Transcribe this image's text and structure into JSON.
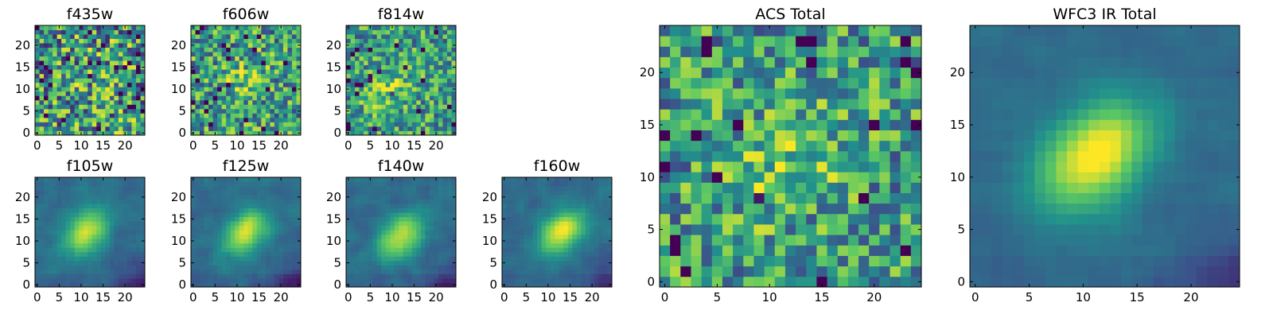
{
  "figure": {
    "colormap": "viridis",
    "colormap_stops": [
      "#440154",
      "#3b528b",
      "#21918c",
      "#5ec962",
      "#fde725"
    ],
    "frame_color": "#000000"
  },
  "chart_data": [
    {
      "type": "heatmap",
      "title": "f435w",
      "grid_size": 25,
      "xlim": [
        0,
        24
      ],
      "ylim": [
        0,
        24
      ],
      "xticks": [
        "0",
        "5",
        "10",
        "15",
        "20"
      ],
      "yticks": [
        "0",
        "5",
        "10",
        "15",
        "20"
      ],
      "source": "noise",
      "center": [
        12,
        12
      ],
      "signal_amplitude": 0.05,
      "noise_level": 0.95
    },
    {
      "type": "heatmap",
      "title": "f606w",
      "grid_size": 25,
      "xlim": [
        0,
        24
      ],
      "ylim": [
        0,
        24
      ],
      "xticks": [
        "0",
        "5",
        "10",
        "15",
        "20"
      ],
      "yticks": [
        "0",
        "5",
        "10",
        "15",
        "20"
      ],
      "source": "faint",
      "center": [
        12,
        12
      ],
      "signal_amplitude": 0.18,
      "noise_level": 0.8
    },
    {
      "type": "heatmap",
      "title": "f814w",
      "grid_size": 25,
      "xlim": [
        0,
        24
      ],
      "ylim": [
        0,
        24
      ],
      "xticks": [
        "0",
        "5",
        "10",
        "15",
        "20"
      ],
      "yticks": [
        "0",
        "5",
        "10",
        "15",
        "20"
      ],
      "source": "faint",
      "center": [
        9,
        10
      ],
      "signal_amplitude": 0.25,
      "noise_level": 0.7
    },
    {
      "type": "heatmap",
      "title": "f105w",
      "grid_size": 25,
      "xlim": [
        0,
        24
      ],
      "ylim": [
        0,
        24
      ],
      "xticks": [
        "0",
        "5",
        "10",
        "15",
        "20"
      ],
      "yticks": [
        "0",
        "5",
        "10",
        "15",
        "20"
      ],
      "source": "compact",
      "center": [
        11,
        12
      ],
      "signal_amplitude": 0.6,
      "noise_level": 0.3
    },
    {
      "type": "heatmap",
      "title": "f125w",
      "grid_size": 25,
      "xlim": [
        0,
        24
      ],
      "ylim": [
        0,
        24
      ],
      "xticks": [
        "0",
        "5",
        "10",
        "15",
        "20"
      ],
      "yticks": [
        "0",
        "5",
        "10",
        "15",
        "20"
      ],
      "source": "compact",
      "center": [
        12,
        12
      ],
      "signal_amplitude": 0.6,
      "noise_level": 0.3
    },
    {
      "type": "heatmap",
      "title": "f140w",
      "grid_size": 25,
      "xlim": [
        0,
        24
      ],
      "ylim": [
        0,
        24
      ],
      "xticks": [
        "0",
        "5",
        "10",
        "15",
        "20"
      ],
      "yticks": [
        "0",
        "5",
        "10",
        "15",
        "20"
      ],
      "source": "compact",
      "center": [
        12,
        11
      ],
      "signal_amplitude": 0.6,
      "noise_level": 0.3
    },
    {
      "type": "heatmap",
      "title": "f160w",
      "grid_size": 25,
      "xlim": [
        0,
        24
      ],
      "ylim": [
        0,
        24
      ],
      "xticks": [
        "0",
        "5",
        "10",
        "15",
        "20"
      ],
      "yticks": [
        "0",
        "5",
        "10",
        "15",
        "20"
      ],
      "source": "compact",
      "center": [
        13,
        12
      ],
      "signal_amplitude": 0.65,
      "noise_level": 0.25
    },
    {
      "type": "heatmap",
      "title": "ACS Total",
      "grid_size": 25,
      "xlim": [
        0,
        24
      ],
      "ylim": [
        0,
        24
      ],
      "xticks": [
        "0",
        "5",
        "10",
        "15",
        "20"
      ],
      "yticks": [
        "0",
        "5",
        "10",
        "15",
        "20"
      ],
      "source": "faint",
      "center": [
        12,
        11
      ],
      "signal_amplitude": 0.22,
      "noise_level": 0.75
    },
    {
      "type": "heatmap",
      "title": "WFC3 IR Total",
      "grid_size": 25,
      "xlim": [
        0,
        24
      ],
      "ylim": [
        0,
        24
      ],
      "xticks": [
        "0",
        "5",
        "10",
        "15",
        "20"
      ],
      "yticks": [
        "0",
        "5",
        "10",
        "15",
        "20"
      ],
      "source": "compact",
      "center": [
        11,
        12
      ],
      "signal_amplitude": 0.7,
      "noise_level": 0.2
    }
  ]
}
